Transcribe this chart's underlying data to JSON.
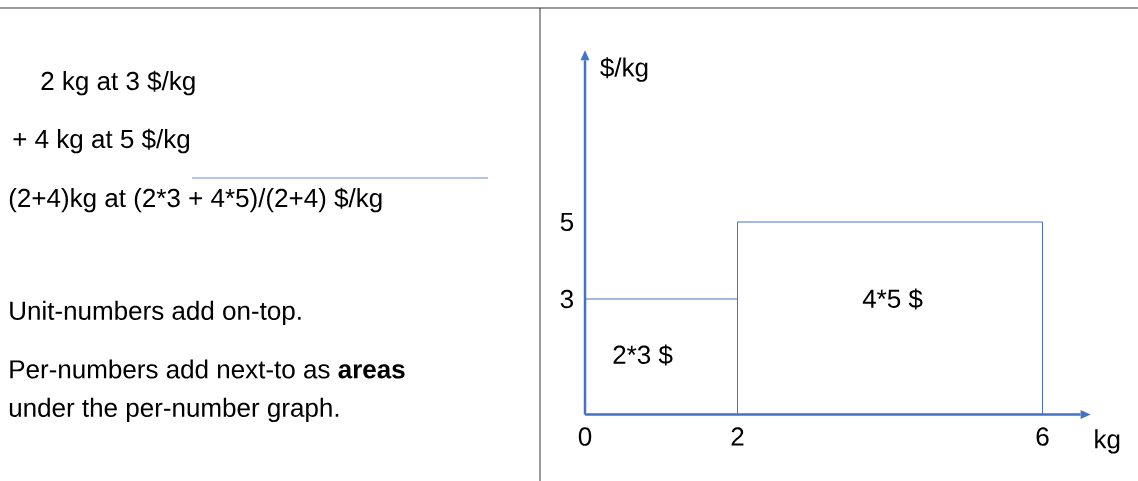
{
  "chart_data": {
    "type": "histogram",
    "bins": [
      0,
      2,
      6
    ],
    "values": [
      3,
      5
    ],
    "color": "#4472c4",
    "xlabel": "kg",
    "ylabel": "$/kg",
    "xlim": [
      0,
      6.5
    ],
    "ylim": [
      0,
      9.2
    ],
    "xticks": [
      0,
      2,
      6
    ],
    "yticks": [
      3,
      5
    ],
    "annotations": [
      "2*3 $",
      "4*5 $",
      "2 kg   at   3 $/kg",
      "+ 4 kg   at   5 $/kg",
      "(2+4)kg at (2*3 + 4*5)/(2+4) $/kg",
      "Unit-numbers add on-top.",
      "Per-numbers add next-to as **areas**",
      "under the per-number graph."
    ]
  }
}
